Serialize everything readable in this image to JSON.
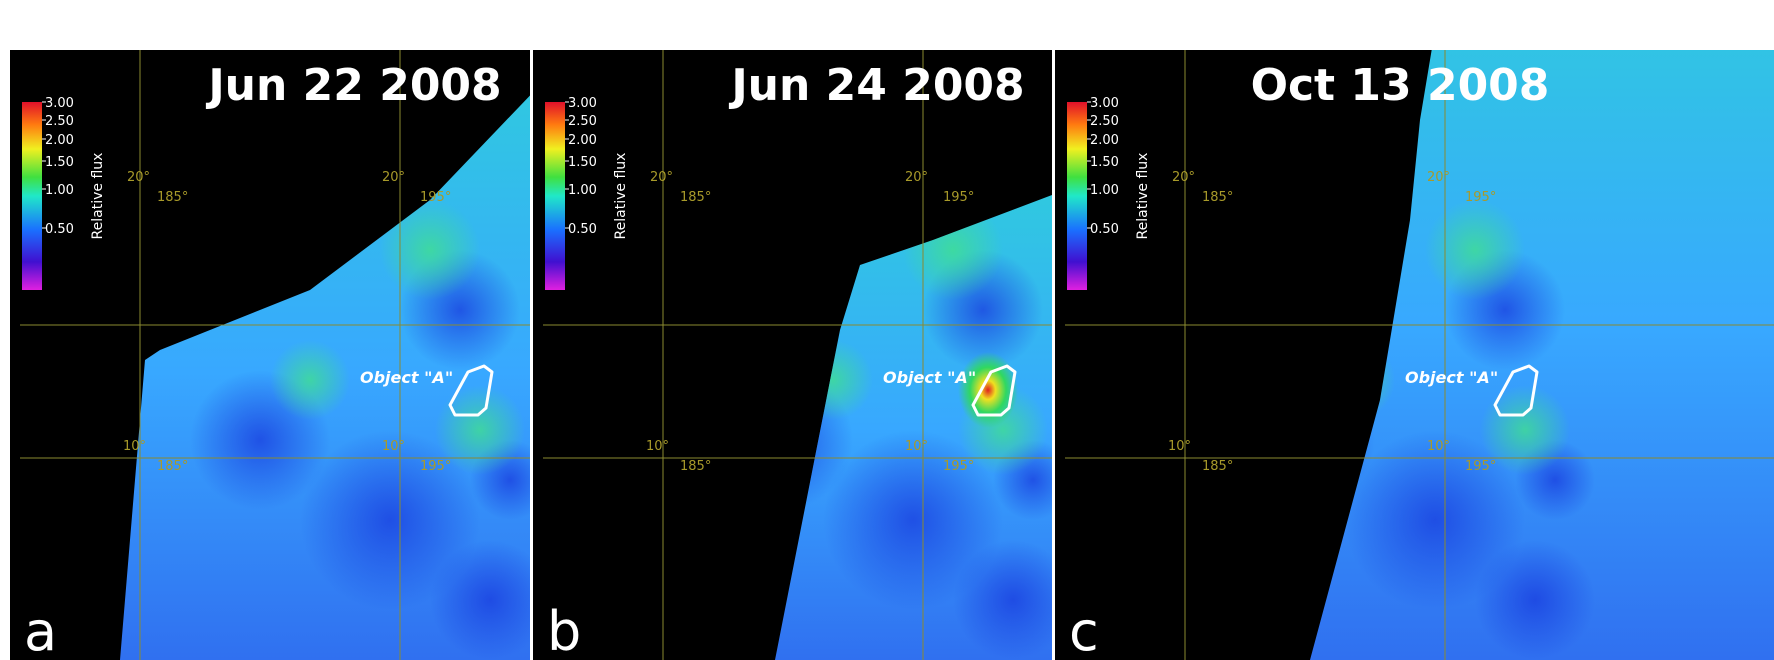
{
  "panels": [
    {
      "title": "Jun 22 2008",
      "letter": "a",
      "colorbar": {
        "label": "Relative flux",
        "ticks": [
          "3.00",
          "2.50",
          "2.00",
          "1.50",
          "1.00",
          "0.50"
        ]
      },
      "grid_labels": [
        "20°",
        "185°",
        "20°",
        "195°",
        "10°",
        "185°",
        "10°",
        "195°"
      ],
      "object_label": "Object \"A\""
    },
    {
      "title": "Jun 24 2008",
      "letter": "b",
      "colorbar": {
        "label": "Relative flux",
        "ticks": [
          "3.00",
          "2.50",
          "2.00",
          "1.50",
          "1.00",
          "0.50"
        ]
      },
      "grid_labels": [
        "20°",
        "185°",
        "20°",
        "195°",
        "10°",
        "185°",
        "10°",
        "195°"
      ],
      "object_label": "Object \"A\""
    },
    {
      "title": "Oct 13 2008",
      "letter": "c",
      "colorbar": {
        "label": "Relative flux",
        "ticks": [
          "3.00",
          "2.50",
          "2.00",
          "1.50",
          "1.00",
          "0.50"
        ]
      },
      "grid_labels": [
        "20°",
        "185°",
        "20°",
        "195°",
        "10°",
        "185°",
        "10°",
        "195°"
      ],
      "object_label": "Object \"A\""
    }
  ]
}
